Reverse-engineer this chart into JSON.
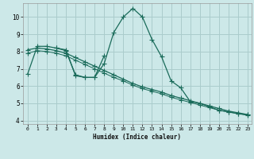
{
  "xlabel": "Humidex (Indice chaleur)",
  "background_color": "#cce8e8",
  "grid_color": "#aacccc",
  "line_color": "#1a6b5a",
  "xlim": [
    -0.5,
    23.4
  ],
  "ylim": [
    3.8,
    10.8
  ],
  "xticks": [
    0,
    1,
    2,
    3,
    4,
    5,
    6,
    7,
    8,
    9,
    10,
    11,
    12,
    13,
    14,
    15,
    16,
    17,
    18,
    19,
    20,
    21,
    22,
    23
  ],
  "yticks": [
    4,
    5,
    6,
    7,
    8,
    9,
    10
  ],
  "line1_x": [
    0,
    1,
    2,
    3,
    4,
    5,
    6,
    7,
    8,
    9,
    10,
    11,
    12,
    13,
    14,
    15,
    16,
    17,
    18,
    19,
    20,
    21,
    22,
    23
  ],
  "line1_y": [
    6.7,
    8.3,
    8.3,
    8.2,
    8.1,
    6.6,
    6.5,
    6.5,
    7.3,
    9.1,
    10.0,
    10.5,
    10.0,
    8.7,
    7.7,
    6.3,
    5.9,
    5.1,
    5.0,
    4.8,
    4.6,
    4.5,
    4.4,
    4.35
  ],
  "line2_x": [
    0,
    1,
    2,
    3,
    4,
    5,
    6,
    7,
    8,
    9,
    10,
    11,
    12,
    13,
    14,
    15,
    16,
    17,
    18,
    19,
    20,
    21,
    22,
    23
  ],
  "line2_y": [
    8.1,
    8.2,
    8.15,
    8.05,
    7.9,
    7.65,
    7.4,
    7.15,
    6.9,
    6.65,
    6.4,
    6.15,
    5.95,
    5.8,
    5.65,
    5.45,
    5.3,
    5.15,
    5.0,
    4.85,
    4.7,
    4.55,
    4.45,
    4.35
  ],
  "line3_x": [
    0,
    1,
    2,
    3,
    4,
    5,
    6,
    7,
    8,
    9,
    10,
    11,
    12,
    13,
    14,
    15,
    16,
    17,
    18,
    19,
    20,
    21,
    22,
    23
  ],
  "line3_y": [
    7.9,
    8.05,
    8.0,
    7.9,
    7.75,
    7.5,
    7.25,
    7.0,
    6.75,
    6.5,
    6.3,
    6.05,
    5.85,
    5.7,
    5.55,
    5.35,
    5.2,
    5.05,
    4.9,
    4.75,
    4.6,
    4.5,
    4.4,
    4.3
  ],
  "line4_x": [
    3,
    4,
    5,
    6,
    7,
    8
  ],
  "line4_y": [
    8.2,
    8.05,
    6.65,
    6.5,
    6.5,
    7.75
  ]
}
